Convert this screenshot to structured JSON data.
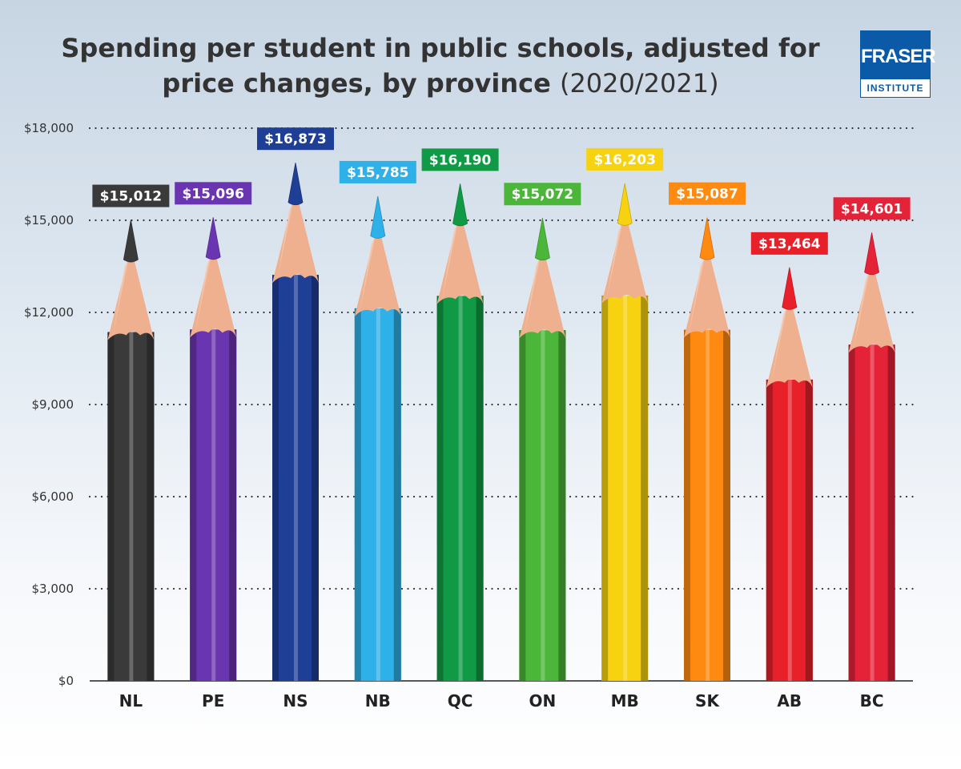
{
  "header": {
    "title_main": "Spending per student in public schools, adjusted for price changes, by province",
    "title_year": "(2020/2021)"
  },
  "logo": {
    "line1": "FRASER",
    "line2": "INSTITUTE",
    "color": "#0b5aa8"
  },
  "chart_data": {
    "type": "bar",
    "title": "Spending per student in public schools, adjusted for price changes, by province (2020/2021)",
    "categories": [
      "NL",
      "PE",
      "NS",
      "NB",
      "QC",
      "ON",
      "MB",
      "SK",
      "AB",
      "BC"
    ],
    "values": [
      15012,
      15096,
      16873,
      15785,
      16190,
      15072,
      16203,
      15087,
      13464,
      14601
    ],
    "value_labels": [
      "$15,012",
      "$15,096",
      "$16,873",
      "$15,785",
      "$16,190",
      "$15,072",
      "$16,203",
      "$15,087",
      "$13,464",
      "$14,601"
    ],
    "colors": [
      "#3a3a3a",
      "#6a35b0",
      "#1f3f96",
      "#2eb0e8",
      "#119a45",
      "#4cb63a",
      "#f6d210",
      "#ff8a12",
      "#e8202a",
      "#e42238"
    ],
    "y_ticks": [
      0,
      3000,
      6000,
      9000,
      12000,
      15000,
      18000
    ],
    "y_tick_labels": [
      "$0",
      "$3,000",
      "$6,000",
      "$9,000",
      "$12,000",
      "$15,000",
      "$18,000"
    ],
    "ylim": [
      0,
      18000
    ],
    "grid": true,
    "grid_style": "dotted",
    "legend": "none"
  }
}
